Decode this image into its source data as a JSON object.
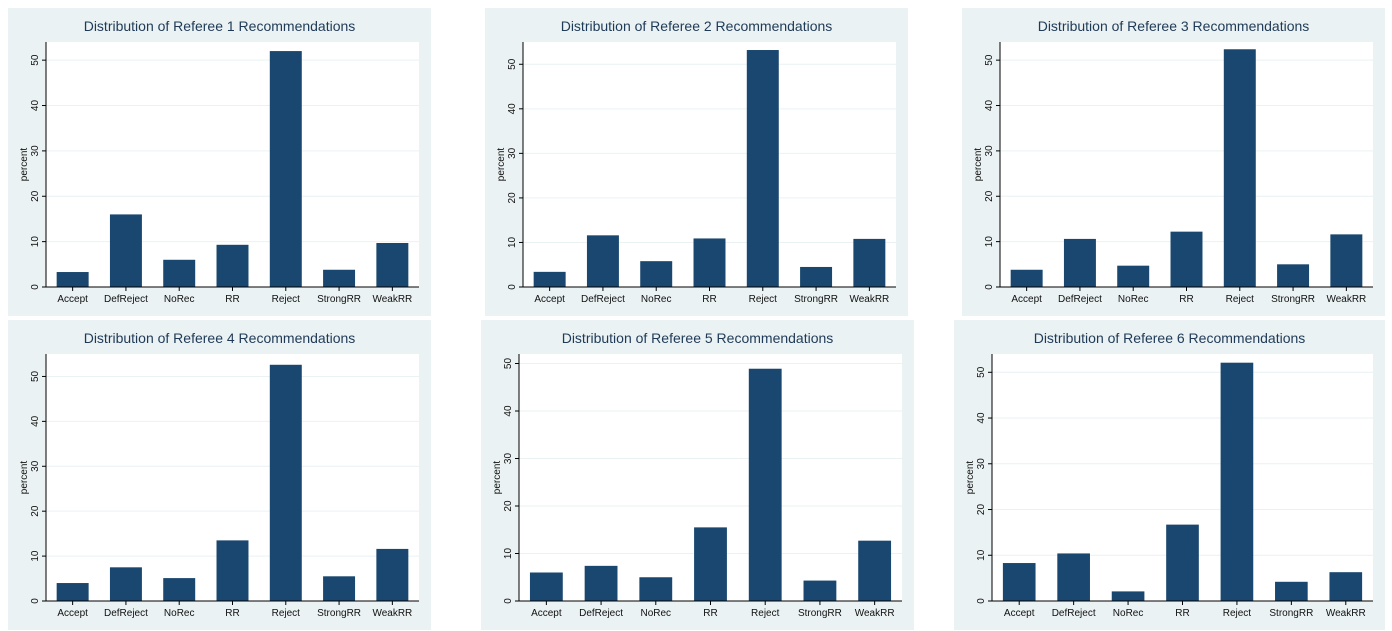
{
  "chart_data": [
    {
      "type": "bar",
      "title": "Distribution of Referee 1 Recommendations",
      "ylabel": "percent",
      "xlabel": "",
      "categories": [
        "Accept",
        "DefReject",
        "NoRec",
        "RR",
        "Reject",
        "StrongRR",
        "WeakRR"
      ],
      "values": [
        3.3,
        16.0,
        6.0,
        9.3,
        52.0,
        3.8,
        9.7
      ],
      "yticks": [
        0,
        10,
        20,
        30,
        40,
        50
      ],
      "ylim": [
        0,
        54
      ],
      "grid": true,
      "bar_color": "#1a476f",
      "panel_color": "#eaf2f3"
    },
    {
      "type": "bar",
      "title": "Distribution of Referee 2 Recommendations",
      "ylabel": "percent",
      "xlabel": "",
      "categories": [
        "Accept",
        "DefReject",
        "NoRec",
        "RR",
        "Reject",
        "StrongRR",
        "WeakRR"
      ],
      "values": [
        3.4,
        11.6,
        5.8,
        10.9,
        53.2,
        4.5,
        10.8
      ],
      "yticks": [
        0,
        10,
        20,
        30,
        40,
        50
      ],
      "ylim": [
        0,
        55
      ],
      "grid": true,
      "bar_color": "#1a476f",
      "panel_color": "#eaf2f3"
    },
    {
      "type": "bar",
      "title": "Distribution of Referee 3 Recommendations",
      "ylabel": "percent",
      "xlabel": "",
      "categories": [
        "Accept",
        "DefReject",
        "NoRec",
        "RR",
        "Reject",
        "StrongRR",
        "WeakRR"
      ],
      "values": [
        3.8,
        10.6,
        4.7,
        12.2,
        52.4,
        5.0,
        11.6
      ],
      "yticks": [
        0,
        10,
        20,
        30,
        40,
        50
      ],
      "ylim": [
        0,
        54
      ],
      "grid": true,
      "bar_color": "#1a476f",
      "panel_color": "#eaf2f3"
    },
    {
      "type": "bar",
      "title": "Distribution of Referee 4 Recommendations",
      "ylabel": "percent",
      "xlabel": "",
      "categories": [
        "Accept",
        "DefReject",
        "NoRec",
        "RR",
        "Reject",
        "StrongRR",
        "WeakRR"
      ],
      "values": [
        4.0,
        7.5,
        5.1,
        13.5,
        52.6,
        5.5,
        11.6
      ],
      "yticks": [
        0,
        10,
        20,
        30,
        40,
        50
      ],
      "ylim": [
        0,
        55
      ],
      "grid": true,
      "bar_color": "#1a476f",
      "panel_color": "#eaf2f3"
    },
    {
      "type": "bar",
      "title": "Distribution of Referee 5 Recommendations",
      "ylabel": "percent",
      "xlabel": "",
      "categories": [
        "Accept",
        "DefReject",
        "NoRec",
        "RR",
        "Reject",
        "StrongRR",
        "WeakRR"
      ],
      "values": [
        6.0,
        7.4,
        5.0,
        15.5,
        48.9,
        4.3,
        12.7
      ],
      "yticks": [
        0,
        10,
        20,
        30,
        40,
        50
      ],
      "ylim": [
        0,
        52
      ],
      "grid": true,
      "bar_color": "#1a476f",
      "panel_color": "#eaf2f3"
    },
    {
      "type": "bar",
      "title": "Distribution of Referee 6 Recommendations",
      "ylabel": "percent",
      "xlabel": "",
      "categories": [
        "Accept",
        "DefReject",
        "NoRec",
        "RR",
        "Reject",
        "StrongRR",
        "WeakRR"
      ],
      "values": [
        8.3,
        10.4,
        2.1,
        16.7,
        52.1,
        4.2,
        6.3
      ],
      "yticks": [
        0,
        10,
        20,
        30,
        40,
        50
      ],
      "ylim": [
        0,
        54
      ],
      "grid": true,
      "bar_color": "#1a476f",
      "panel_color": "#eaf2f3"
    }
  ]
}
